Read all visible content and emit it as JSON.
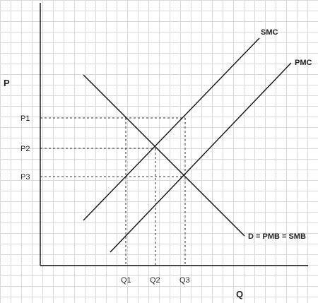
{
  "colors": {
    "background": "#ffffff",
    "grid": "#d9d9d9",
    "ink": "#111111",
    "guide": "#333333"
  },
  "diagram": {
    "y_axis_label": "P",
    "x_axis_label": "Q",
    "price_labels": [
      "P1",
      "P2",
      "P3"
    ],
    "quantity_labels": [
      "Q1",
      "Q2",
      "Q3"
    ],
    "curves": {
      "smc": "SMC",
      "pmc": "PMC",
      "demand": "D = PMB = SMB"
    }
  }
}
